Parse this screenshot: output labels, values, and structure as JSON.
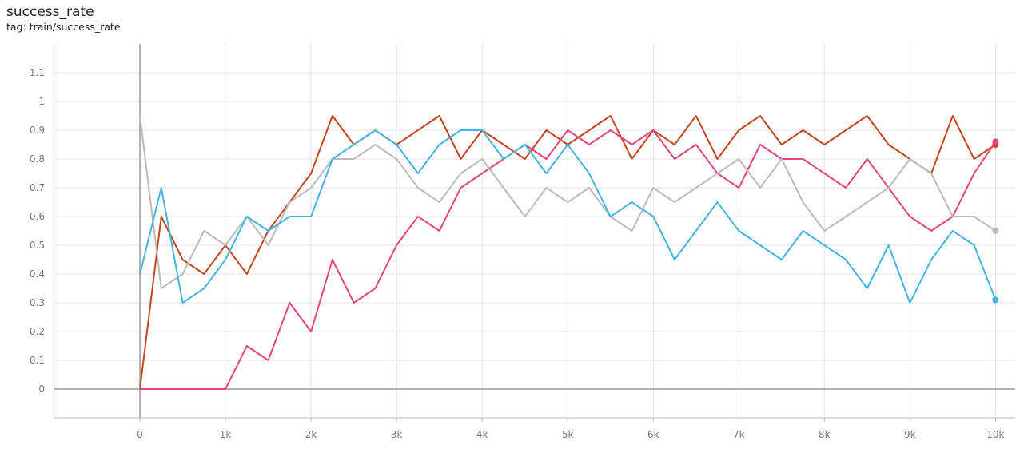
{
  "chart_data": {
    "type": "line",
    "title": "success_rate",
    "subtitle": "tag: train/success_rate",
    "x": [
      0,
      250,
      500,
      750,
      1000,
      1250,
      1500,
      1750,
      2000,
      2250,
      2500,
      2750,
      3000,
      3250,
      3500,
      3750,
      4000,
      4250,
      4500,
      4750,
      5000,
      5250,
      5500,
      5750,
      6000,
      6250,
      6500,
      6750,
      7000,
      7250,
      7500,
      7750,
      8000,
      8250,
      8500,
      8750,
      9000,
      9250,
      9500,
      9750,
      10000
    ],
    "series": [
      {
        "color": "#c4441e",
        "values": [
          0,
          0.6,
          0.45,
          0.4,
          0.5,
          0.4,
          0.55,
          0.65,
          0.75,
          0.95,
          0.85,
          0.9,
          0.85,
          0.9,
          0.95,
          0.8,
          0.9,
          0.85,
          0.8,
          0.9,
          0.85,
          0.9,
          0.95,
          0.8,
          0.9,
          0.85,
          0.95,
          0.8,
          0.9,
          0.95,
          0.85,
          0.9,
          0.85,
          0.9,
          0.95,
          0.85,
          0.8,
          0.75,
          0.95,
          0.8,
          0.85
        ]
      },
      {
        "color": "#e5447f",
        "values": [
          0,
          0,
          0,
          0,
          0,
          0.15,
          0.1,
          0.3,
          0.2,
          0.45,
          0.3,
          0.35,
          0.5,
          0.6,
          0.55,
          0.7,
          0.75,
          0.8,
          0.85,
          0.8,
          0.9,
          0.85,
          0.9,
          0.85,
          0.9,
          0.8,
          0.85,
          0.75,
          0.7,
          0.85,
          0.8,
          0.8,
          0.75,
          0.7,
          0.8,
          0.7,
          0.6,
          0.55,
          0.6,
          0.75,
          0.86
        ]
      },
      {
        "color": "#bbbbbb",
        "values": [
          0.95,
          0.35,
          0.4,
          0.55,
          0.5,
          0.6,
          0.5,
          0.65,
          0.7,
          0.8,
          0.8,
          0.85,
          0.8,
          0.7,
          0.65,
          0.75,
          0.8,
          0.7,
          0.6,
          0.7,
          0.65,
          0.7,
          0.6,
          0.55,
          0.7,
          0.65,
          0.7,
          0.75,
          0.8,
          0.7,
          0.8,
          0.65,
          0.55,
          0.6,
          0.65,
          0.7,
          0.8,
          0.75,
          0.6,
          0.6,
          0.55
        ]
      },
      {
        "color": "#45b5e0",
        "values": [
          0.4,
          0.7,
          0.3,
          0.35,
          0.45,
          0.6,
          0.55,
          0.6,
          0.6,
          0.8,
          0.85,
          0.9,
          0.85,
          0.75,
          0.85,
          0.9,
          0.9,
          0.8,
          0.85,
          0.75,
          0.85,
          0.75,
          0.6,
          0.65,
          0.6,
          0.45,
          0.55,
          0.65,
          0.55,
          0.5,
          0.45,
          0.55,
          0.5,
          0.45,
          0.35,
          0.5,
          0.3,
          0.45,
          0.55,
          0.5,
          0.31
        ]
      }
    ],
    "xlim": [
      -1000,
      10230
    ],
    "ylim": [
      -0.1,
      1.2
    ],
    "xticks": [
      0,
      {
        "value": 1000,
        "label": "1k"
      },
      {
        "value": 2000,
        "label": "2k"
      },
      {
        "value": 3000,
        "label": "3k"
      },
      {
        "value": 4000,
        "label": "4k"
      },
      {
        "value": 5000,
        "label": "5k"
      },
      {
        "value": 6000,
        "label": "6k"
      },
      {
        "value": 7000,
        "label": "7k"
      },
      {
        "value": 8000,
        "label": "8k"
      },
      {
        "value": 9000,
        "label": "9k"
      },
      {
        "value": 10000,
        "label": "10k"
      }
    ],
    "yticks": [
      0,
      0.1,
      0.2,
      0.3,
      0.4,
      0.5,
      0.6,
      0.7,
      0.8,
      0.9,
      1,
      1.1
    ],
    "grid": true
  }
}
